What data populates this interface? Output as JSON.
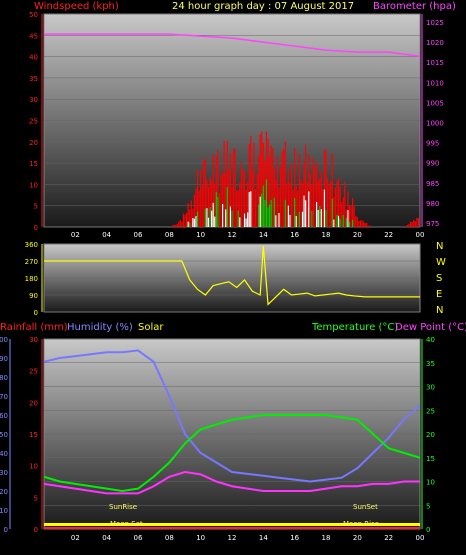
{
  "header": {
    "title": "24 hour graph day : 07 August 2017",
    "left_label": "Windspeed (kph)",
    "right_label": "Barometer (hpa)"
  },
  "legend": {
    "rainfall": "Rainfall (mm)",
    "humidity": "Humidity (%)",
    "solar": "Solar",
    "temperature": "Temperature (°C)",
    "dewpoint": "Dew Point (°C)"
  },
  "direction_labels": [
    "N",
    "W",
    "S",
    "E",
    "N"
  ],
  "markers": {
    "sunrise": "SunRise",
    "sunset": "SunSet",
    "moonset": "Moon Set",
    "moonrise": "Moon Rise"
  },
  "colors": {
    "windspeed": "#ff0000",
    "gust_white": "#ffffff",
    "wind_green": "#00cc00",
    "barometer": "#ff33ff",
    "direction": "#ffff00",
    "rainfall": "#ff2222",
    "humidity": "#7777ff",
    "solar": "#ffff00",
    "temperature": "#00ff00",
    "dewpoint": "#ff33ff"
  },
  "chart_data": [
    {
      "type": "line",
      "title": "24 hour graph day : 07 August 2017",
      "xlabel": "",
      "x_ticks": [
        "02",
        "04",
        "06",
        "08",
        "10",
        "12",
        "14",
        "16",
        "18",
        "20",
        "22",
        "00"
      ],
      "y_left_label": "Windspeed (kph)",
      "y_left_ticks": [
        0,
        5,
        10,
        15,
        20,
        25,
        30,
        35,
        40,
        45,
        50
      ],
      "y_left_lim": [
        0,
        50
      ],
      "y_right_label": "Barometer (hpa)",
      "y_right_ticks": [
        975,
        980,
        985,
        990,
        995,
        1000,
        1005,
        1010,
        1015,
        1020,
        1025
      ],
      "y_right_lim": [
        974,
        1027
      ],
      "series": [
        {
          "name": "Windspeed (kph)",
          "axis": "left",
          "x": [
            0,
            1,
            2,
            3,
            4,
            5,
            6,
            7,
            8,
            8.5,
            9,
            9.5,
            10,
            10.5,
            11,
            11.5,
            12,
            12.5,
            13,
            13.5,
            14,
            14.5,
            15,
            15.5,
            16,
            16.5,
            17,
            17.5,
            18,
            18.5,
            19,
            19.5,
            20,
            20.5,
            21,
            22,
            23,
            23.5,
            24
          ],
          "values": [
            0,
            0,
            0,
            0,
            0,
            0,
            0,
            0,
            0,
            1,
            3,
            8,
            12,
            14,
            15,
            16,
            15,
            17,
            18,
            16,
            19,
            17,
            18,
            16,
            17,
            15,
            16,
            14,
            15,
            13,
            10,
            7,
            3,
            1,
            0,
            0,
            0,
            2,
            3
          ]
        },
        {
          "name": "Barometer (hpa)",
          "axis": "right",
          "x": [
            0,
            2,
            4,
            6,
            8,
            10,
            12,
            14,
            16,
            18,
            20,
            22,
            24
          ],
          "values": [
            1022,
            1022,
            1022,
            1022,
            1022,
            1021.5,
            1021,
            1020,
            1019,
            1018,
            1017.5,
            1017.5,
            1016.5
          ]
        }
      ]
    },
    {
      "type": "line",
      "title": "",
      "y_ticks": [
        0,
        90,
        180,
        270,
        360
      ],
      "ylim": [
        0,
        360
      ],
      "series": [
        {
          "name": "Wind direction",
          "x": [
            0,
            1,
            2,
            3,
            4,
            5,
            6,
            7,
            8,
            8.8,
            9.3,
            9.8,
            10.3,
            10.8,
            11.3,
            11.8,
            12.3,
            12.8,
            13.3,
            13.8,
            14,
            14.3,
            14.8,
            15.3,
            15.8,
            16.3,
            16.8,
            17.3,
            17.8,
            18.3,
            18.8,
            19.3,
            19.8,
            20.5,
            21,
            22,
            23,
            24
          ],
          "values": [
            270,
            270,
            270,
            270,
            270,
            270,
            270,
            270,
            270,
            270,
            170,
            120,
            90,
            140,
            150,
            160,
            130,
            170,
            110,
            90,
            350,
            40,
            80,
            120,
            90,
            95,
            100,
            85,
            90,
            95,
            100,
            90,
            85,
            80,
            80,
            80,
            80,
            80
          ]
        }
      ]
    },
    {
      "type": "line",
      "title": "",
      "x_ticks": [
        "02",
        "04",
        "06",
        "08",
        "10",
        "12",
        "14",
        "16",
        "18",
        "20",
        "22",
        "00"
      ],
      "y_left1_label": "Rainfall (mm)",
      "y_left1_ticks": [
        0,
        10,
        20,
        30,
        40,
        50,
        60,
        70,
        80,
        90,
        100
      ],
      "y_left2_label": "Humidity (%)",
      "y_left2_ticks": [
        0,
        5,
        10,
        15,
        20,
        25,
        30
      ],
      "y_right_label": "Temperature (°C)",
      "y_right_ticks": [
        0,
        5,
        10,
        15,
        20,
        25,
        30,
        35,
        40
      ],
      "ylim": [
        0,
        40
      ],
      "series": [
        {
          "name": "Humidity (%)",
          "x": [
            0,
            1,
            2,
            3,
            4,
            5,
            6,
            7,
            8,
            9,
            10,
            11,
            12,
            13,
            14,
            15,
            16,
            17,
            18,
            19,
            20,
            21,
            22,
            23,
            24
          ],
          "values": [
            88,
            90,
            91,
            92,
            93,
            93,
            94,
            88,
            70,
            50,
            40,
            35,
            30,
            29,
            28,
            27,
            26,
            25,
            26,
            27,
            32,
            40,
            48,
            58,
            65
          ]
        },
        {
          "name": "Temperature (°C)",
          "x": [
            0,
            1,
            2,
            3,
            4,
            5,
            6,
            7,
            8,
            9,
            10,
            11,
            12,
            13,
            14,
            15,
            16,
            17,
            18,
            19,
            20,
            21,
            22,
            23,
            24
          ],
          "values": [
            11,
            10,
            9.5,
            9,
            8.5,
            8,
            8.5,
            11,
            14,
            18,
            21,
            22,
            23,
            23.5,
            24,
            24,
            24,
            24,
            24,
            23.5,
            23,
            20,
            17,
            16,
            15
          ]
        },
        {
          "name": "Dew Point (°C)",
          "x": [
            0,
            1,
            2,
            3,
            4,
            5,
            6,
            7,
            8,
            9,
            10,
            11,
            12,
            13,
            14,
            15,
            16,
            17,
            18,
            19,
            20,
            21,
            22,
            23,
            24
          ],
          "values": [
            9.5,
            9,
            8.5,
            8,
            7.5,
            7.5,
            7.5,
            9,
            11,
            12,
            11.5,
            10,
            9,
            8.5,
            8,
            8,
            8,
            8,
            8.5,
            9,
            9,
            9.5,
            9.5,
            10,
            10
          ]
        },
        {
          "name": "Rainfall (mm)",
          "x": [
            0,
            24
          ],
          "values": [
            0,
            0
          ]
        }
      ]
    }
  ]
}
